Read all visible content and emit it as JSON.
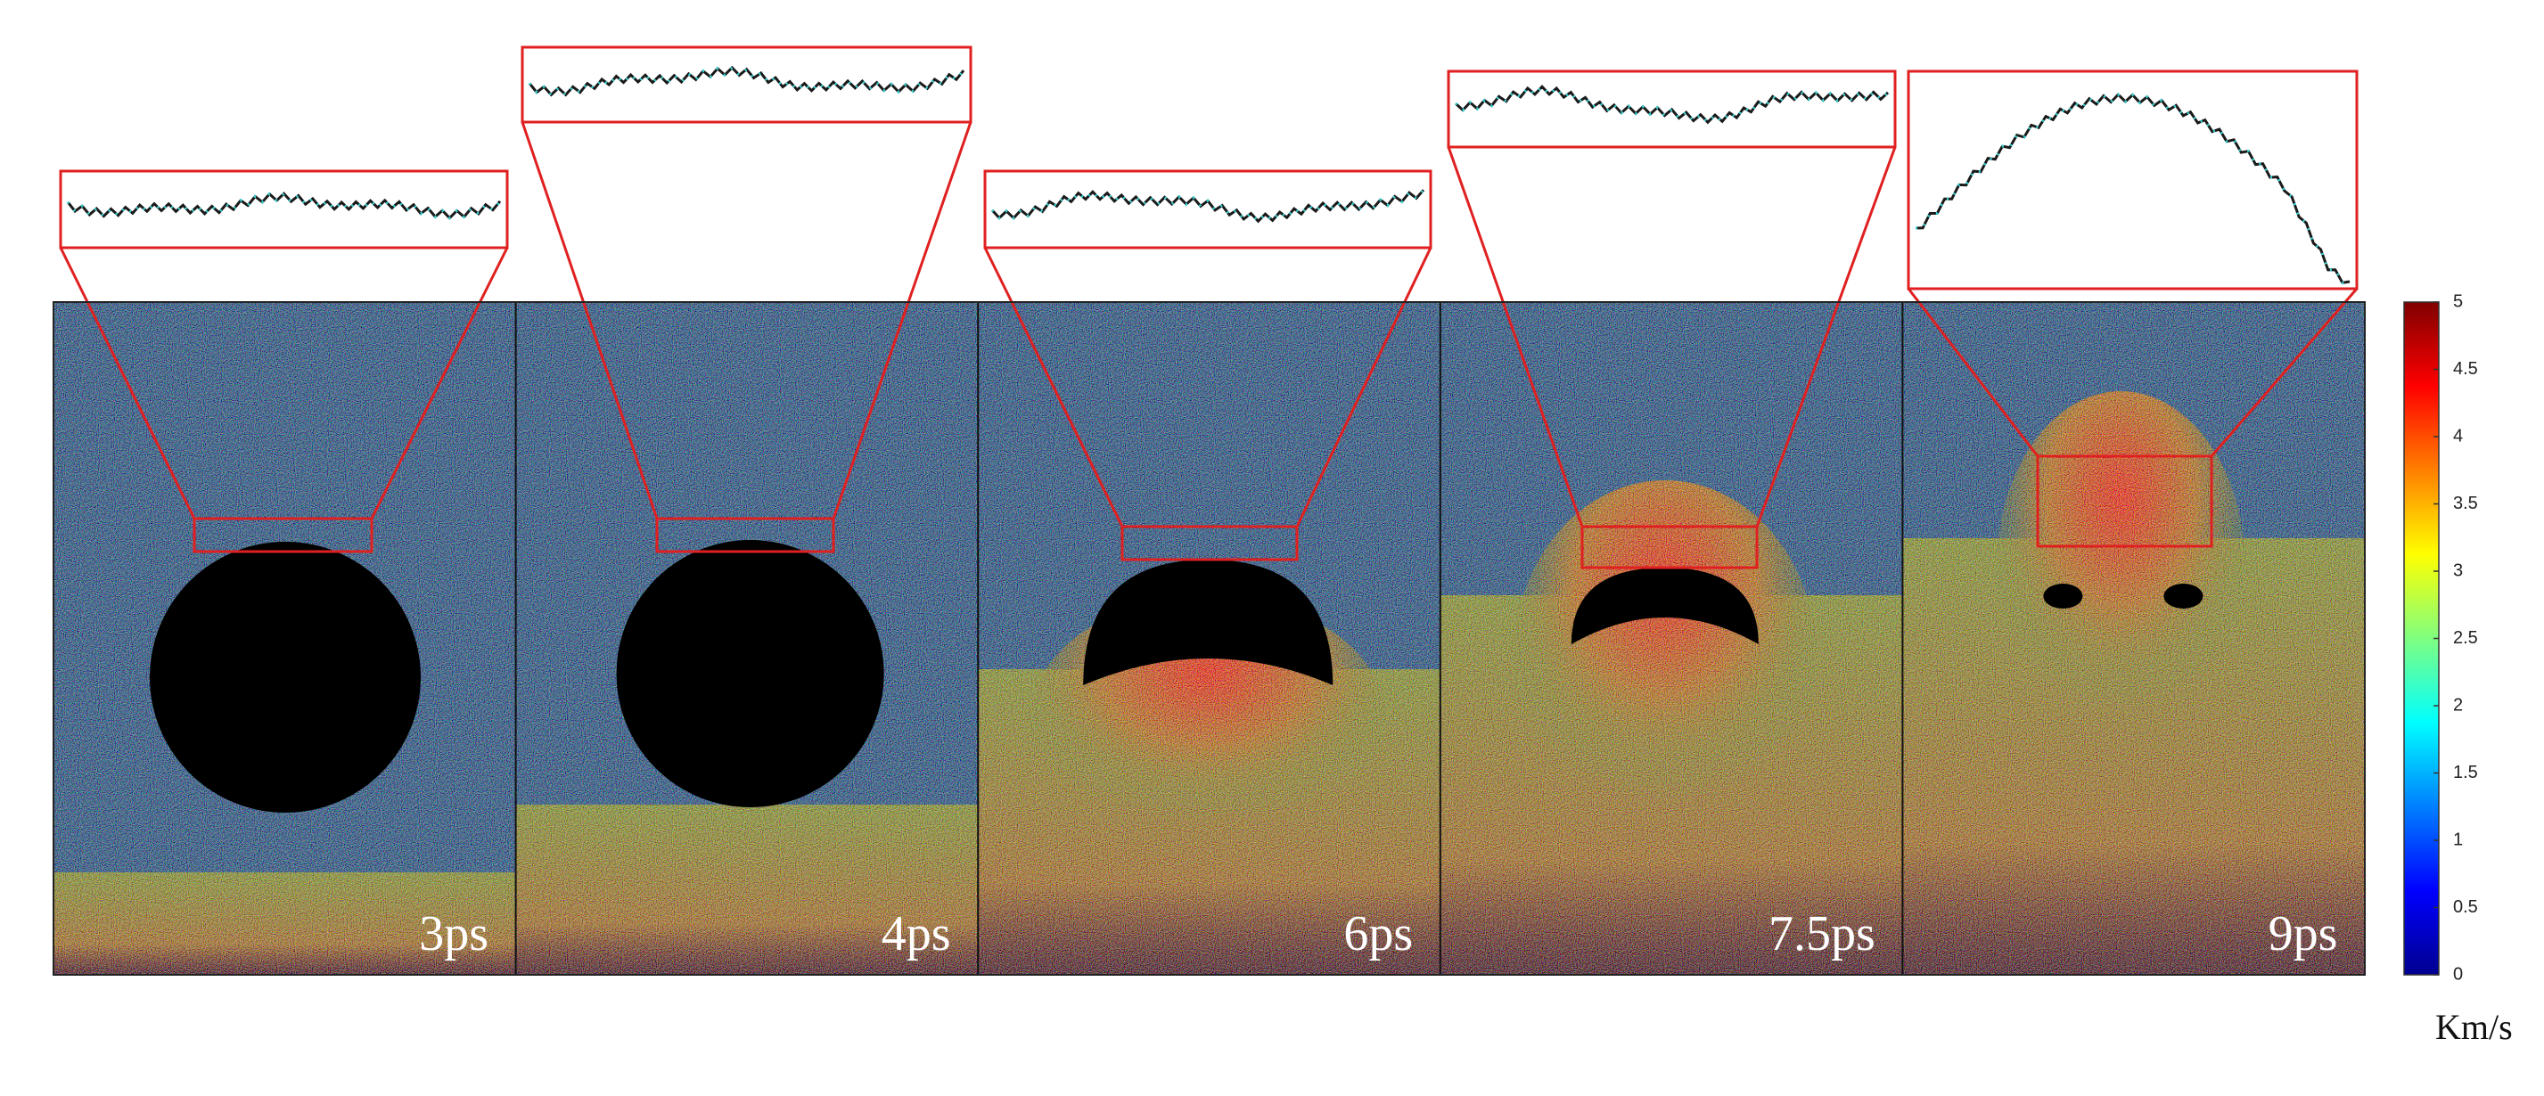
{
  "panels": [
    {
      "label": "3ps"
    },
    {
      "label": "4ps"
    },
    {
      "label": "6ps"
    },
    {
      "label": "7.5ps"
    },
    {
      "label": "9ps"
    }
  ],
  "colorbar": {
    "range": [
      0,
      5
    ],
    "ticks": [
      0,
      0.5,
      1,
      1.5,
      2,
      2.5,
      3,
      3.5,
      4,
      4.5,
      5
    ],
    "unit": "Km/s"
  }
}
